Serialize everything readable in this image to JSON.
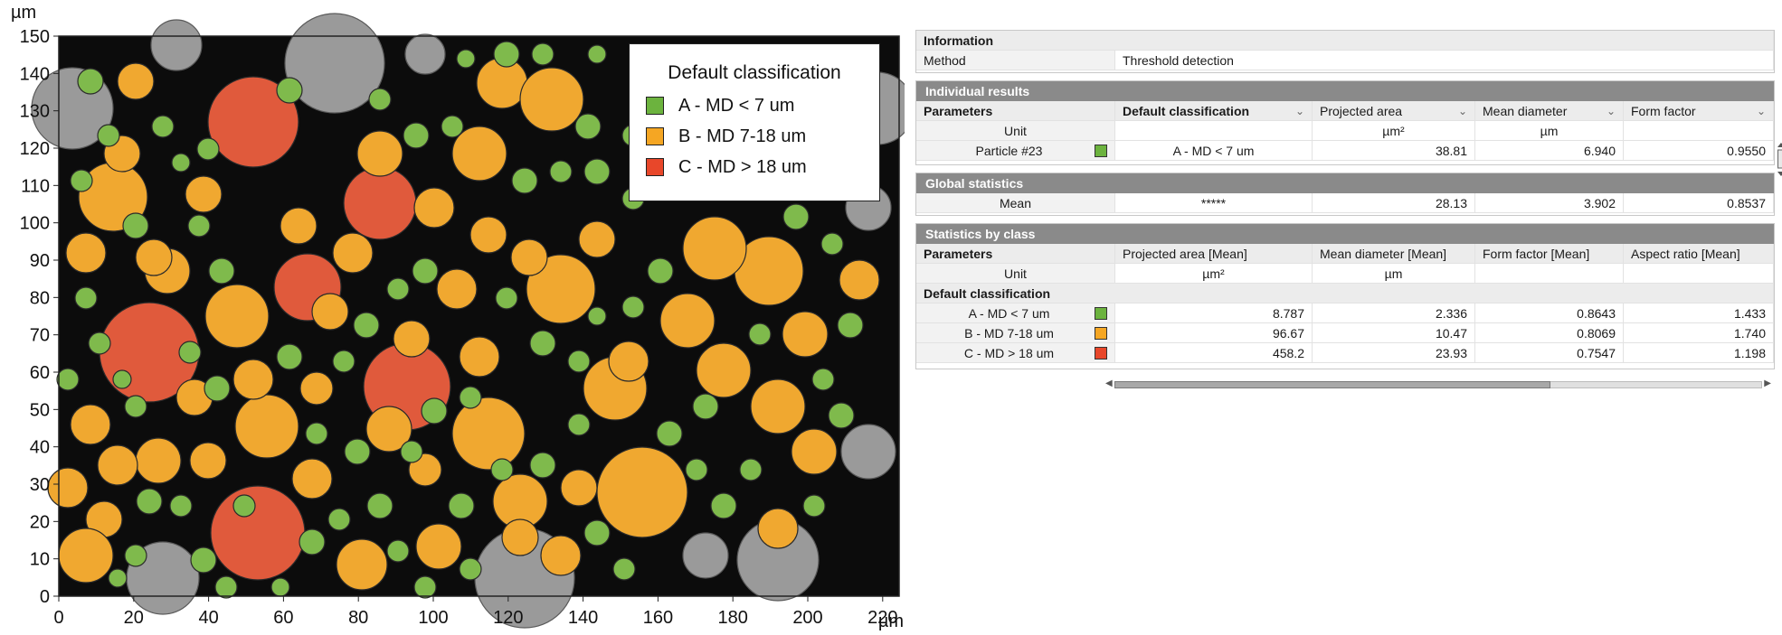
{
  "plot": {
    "y_unit": "µm",
    "x_unit": "µm",
    "y_ticks": [
      "150",
      "140",
      "130",
      "120",
      "110",
      "100",
      "90",
      "80",
      "70",
      "60",
      "50",
      "40",
      "30",
      "20",
      "10",
      "0"
    ],
    "x_ticks": [
      "0",
      "20",
      "40",
      "60",
      "80",
      "100",
      "120",
      "140",
      "160",
      "180",
      "200",
      "220"
    ],
    "colors": {
      "background": "#0c0c0c",
      "class_a": "#7fba4c",
      "class_b": "#f0a830",
      "class_c": "#e05a3c",
      "gray_particle": "#9a9a9a"
    }
  },
  "legend": {
    "title": "Default classification",
    "items": [
      {
        "label": "A - MD < 7 um",
        "color": "#6cb33e"
      },
      {
        "label": "B - MD 7-18 um",
        "color": "#f5a623"
      },
      {
        "label": "C - MD > 18 um",
        "color": "#e8472a"
      }
    ]
  },
  "information": {
    "header": "Information",
    "method_label": "Method",
    "method_value": "Threshold detection"
  },
  "individual": {
    "header": "Individual results",
    "col_params": "Parameters",
    "col_class": "Default classification",
    "col_area": "Projected area",
    "col_md": "Mean diameter",
    "col_ff": "Form factor",
    "unit_label": "Unit",
    "unit_area": "µm²",
    "unit_md": "µm",
    "particle_label": "Particle #23",
    "particle_class": "A - MD < 7 um",
    "particle_area": "38.81",
    "particle_md": "6.940",
    "particle_ff": "0.9550"
  },
  "global": {
    "header": "Global statistics",
    "mean_label": "Mean",
    "mean_class": "*****",
    "mean_area": "28.13",
    "mean_md": "3.902",
    "mean_ff": "0.8537"
  },
  "byclass": {
    "header": "Statistics by class",
    "col_params": "Parameters",
    "col_area": "Projected area [Mean]",
    "col_md": "Mean diameter [Mean]",
    "col_ff": "Form factor [Mean]",
    "col_ar": "Aspect ratio [Mean]",
    "unit_label": "Unit",
    "unit_area": "µm²",
    "unit_md": "µm",
    "group_label": "Default classification",
    "rows": [
      {
        "label": "A - MD < 7 um",
        "area": "8.787",
        "md": "2.336",
        "ff": "0.8643",
        "ar": "1.433",
        "color": "#6cb33e"
      },
      {
        "label": "B - MD 7-18 um",
        "area": "96.67",
        "md": "10.47",
        "ff": "0.8069",
        "ar": "1.740",
        "color": "#f5a623"
      },
      {
        "label": "C - MD > 18 um",
        "area": "458.2",
        "md": "23.93",
        "ff": "0.7547",
        "ar": "1.198",
        "color": "#e8472a"
      }
    ]
  }
}
